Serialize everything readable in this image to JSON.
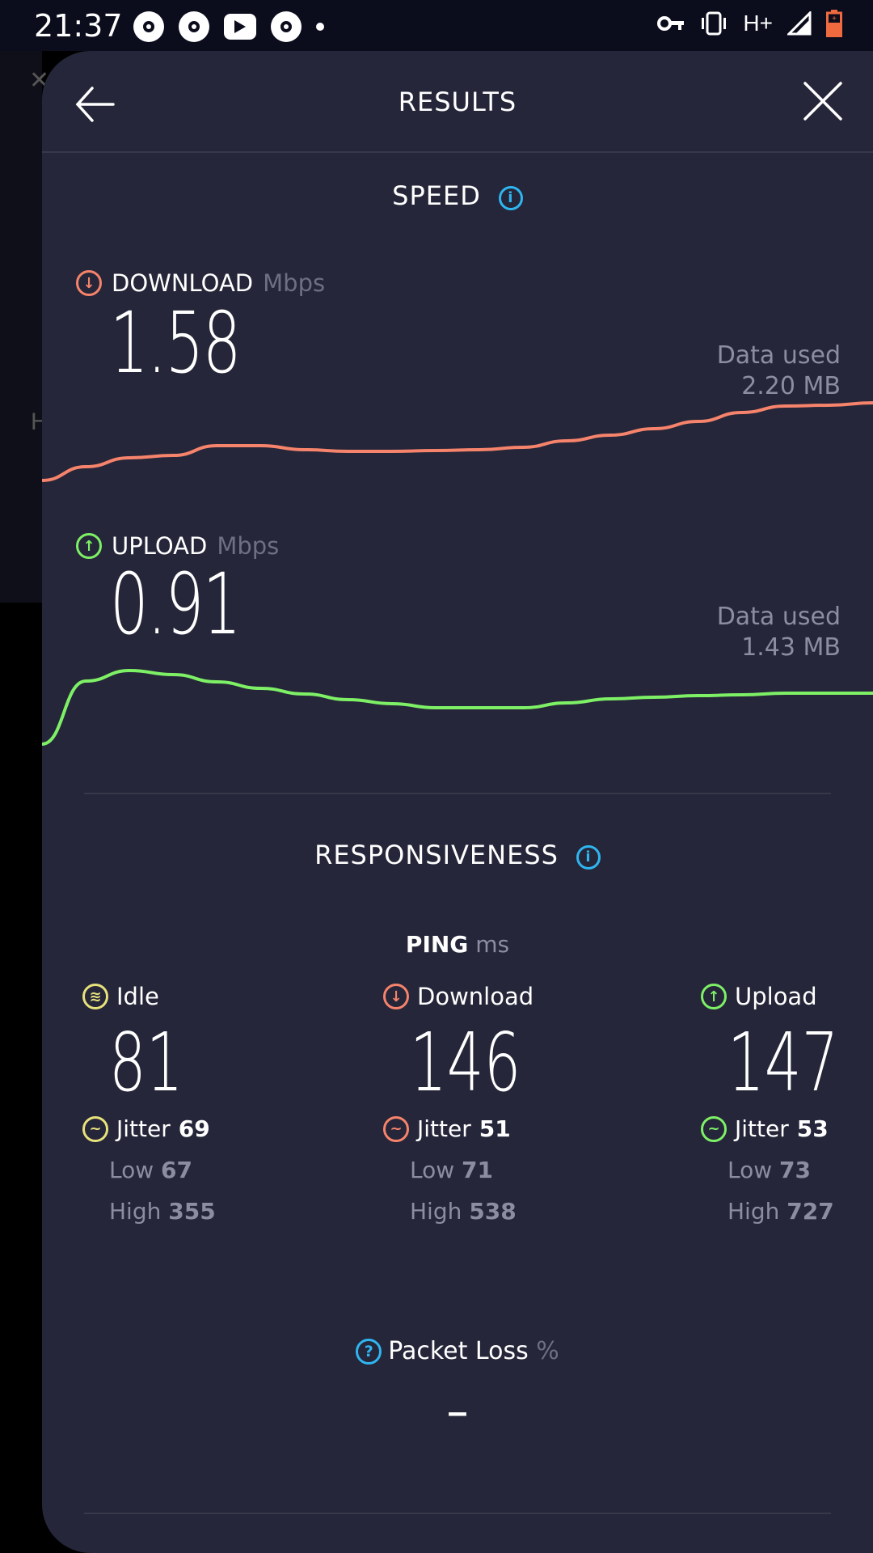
{
  "status_bar": {
    "time": "21:37",
    "network": "H+",
    "battery_color": "#f06a40"
  },
  "header": {
    "title": "RESULTS"
  },
  "speed": {
    "title": "SPEED",
    "download": {
      "label": "DOWNLOAD",
      "unit": "Mbps",
      "value": "1.58",
      "data_used_label": "Data used",
      "data_used": "2.20 MB",
      "color": "#f6836b",
      "trace_level_percent": [
        13.6,
        25.7,
        33.6,
        35.7,
        44.3,
        44.3,
        40.7,
        39.3,
        39.3,
        40,
        40.7,
        42.9,
        48.6,
        53.6,
        59.3,
        65.7,
        73.6,
        79.3,
        80,
        82.1
      ]
    },
    "upload": {
      "label": "UPLOAD",
      "unit": "Mbps",
      "value": "0.91",
      "data_used_label": "Data used",
      "data_used": "1.43 MB",
      "color": "#7ef066",
      "trace_level_percent": [
        7.7,
        67.7,
        77.7,
        73.8,
        66.9,
        60.8,
        55.4,
        50,
        46.2,
        42.3,
        42.3,
        42.3,
        46.9,
        50.8,
        52.3,
        53.8,
        54.6,
        56.2,
        56.2,
        56.2
      ]
    }
  },
  "responsiveness": {
    "title": "RESPONSIVENESS",
    "ping_label": "PING",
    "ping_unit": "ms",
    "columns": [
      {
        "label": "Idle",
        "value": "81",
        "jitter_label": "Jitter",
        "jitter": "69",
        "low_label": "Low",
        "low": "67",
        "high_label": "High",
        "high": "355",
        "color": "#e7e27b"
      },
      {
        "label": "Download",
        "value": "146",
        "jitter_label": "Jitter",
        "jitter": "51",
        "low_label": "Low",
        "low": "71",
        "high_label": "High",
        "high": "538",
        "color": "#f6836b"
      },
      {
        "label": "Upload",
        "value": "147",
        "jitter_label": "Jitter",
        "jitter": "53",
        "low_label": "Low",
        "low": "73",
        "high_label": "High",
        "high": "727",
        "color": "#7ef066"
      }
    ],
    "packet_loss_label": "Packet Loss",
    "packet_loss_unit": "%",
    "packet_loss_value": "–"
  },
  "colors": {
    "accent_info": "#2fb5f0",
    "sheet_bg": "#252639"
  }
}
